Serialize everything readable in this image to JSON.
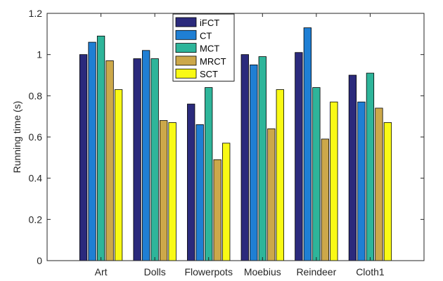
{
  "chart_data": {
    "type": "bar",
    "title": "",
    "xlabel": "",
    "ylabel": "Running time (s)",
    "ylim": [
      0,
      1.2
    ],
    "yticks": [
      0,
      0.2,
      0.4,
      0.6,
      0.8,
      1,
      1.2
    ],
    "ytick_labels": [
      "0",
      "0.2",
      "0.4",
      "0.6",
      "0.8",
      "1",
      "1.2"
    ],
    "grid": false,
    "legend_position": "top-center",
    "categories": [
      "Art",
      "Dolls",
      "Flowerpots",
      "Moebius",
      "Reindeer",
      "Cloth1"
    ],
    "series": [
      {
        "name": "iFCT",
        "color": "#2b2a7c",
        "values": [
          1.0,
          0.98,
          0.76,
          1.0,
          1.01,
          0.9
        ]
      },
      {
        "name": "CT",
        "color": "#1f7fd4",
        "values": [
          1.06,
          1.02,
          0.66,
          0.95,
          1.13,
          0.77
        ]
      },
      {
        "name": "MCT",
        "color": "#2eb59a",
        "values": [
          1.09,
          0.98,
          0.84,
          0.99,
          0.84,
          0.91
        ]
      },
      {
        "name": "MRCT",
        "color": "#cca84a",
        "values": [
          0.97,
          0.68,
          0.49,
          0.64,
          0.59,
          0.74
        ]
      },
      {
        "name": "SCT",
        "color": "#f9fa15",
        "values": [
          0.83,
          0.67,
          0.57,
          0.83,
          0.77,
          0.67
        ]
      }
    ]
  }
}
